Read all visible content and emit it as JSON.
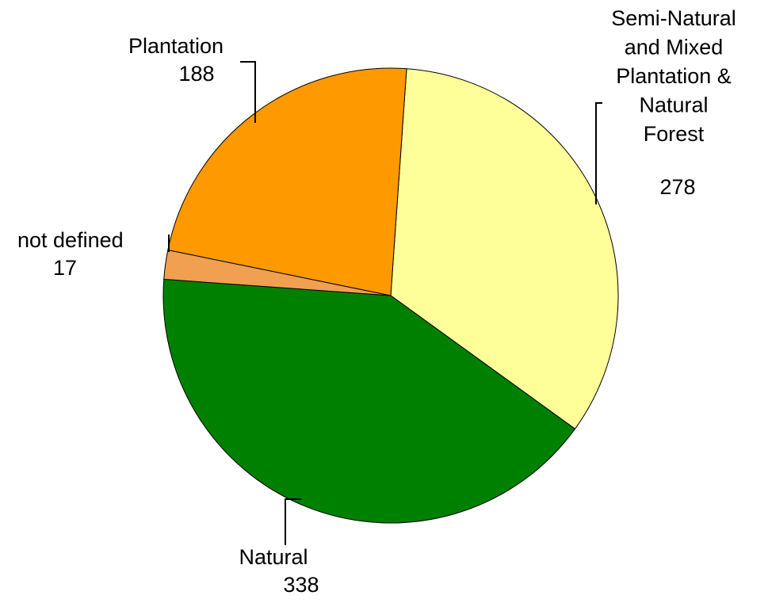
{
  "chart_data": {
    "type": "pie",
    "categories": [
      "Semi-Natural\nand Mixed\nPlantation &\nNatural\nForest",
      "Natural",
      "not defined",
      "Plantation"
    ],
    "values": [
      278,
      338,
      17,
      188
    ],
    "colors": [
      "#ffff99",
      "#008000",
      "#f0a050",
      "#ff9900"
    ]
  }
}
